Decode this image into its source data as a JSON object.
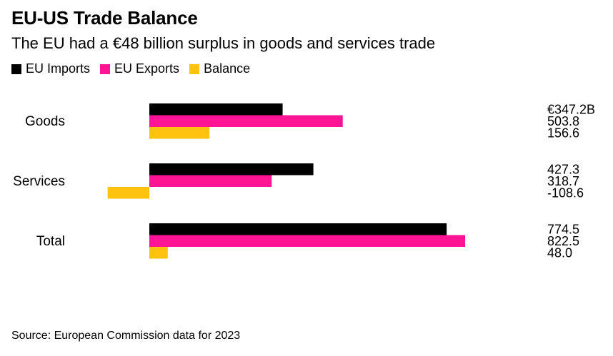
{
  "title": "EU-US Trade Balance",
  "subtitle": "The EU had a €48 billion surplus in goods and services trade",
  "source": "Source: European Commission data for 2023",
  "colors": {
    "imports": "#000000",
    "exports": "#ff1493",
    "balance": "#ffc20e"
  },
  "chart_data": {
    "type": "bar",
    "orientation": "horizontal",
    "categories": [
      "Goods",
      "Services",
      "Total"
    ],
    "series": [
      {
        "name": "EU Imports",
        "values": [
          347.2,
          427.3,
          774.5
        ],
        "labels": [
          "€347.2B",
          "427.3",
          "774.5"
        ]
      },
      {
        "name": "EU Exports",
        "values": [
          503.8,
          318.7,
          822.5
        ],
        "labels": [
          "503.8",
          "318.7",
          "822.5"
        ]
      },
      {
        "name": "Balance",
        "values": [
          156.6,
          -108.6,
          48.0
        ],
        "labels": [
          "156.6",
          "-108.6",
          "48.0"
        ]
      }
    ],
    "legend_position": "top-left",
    "grid": false
  }
}
